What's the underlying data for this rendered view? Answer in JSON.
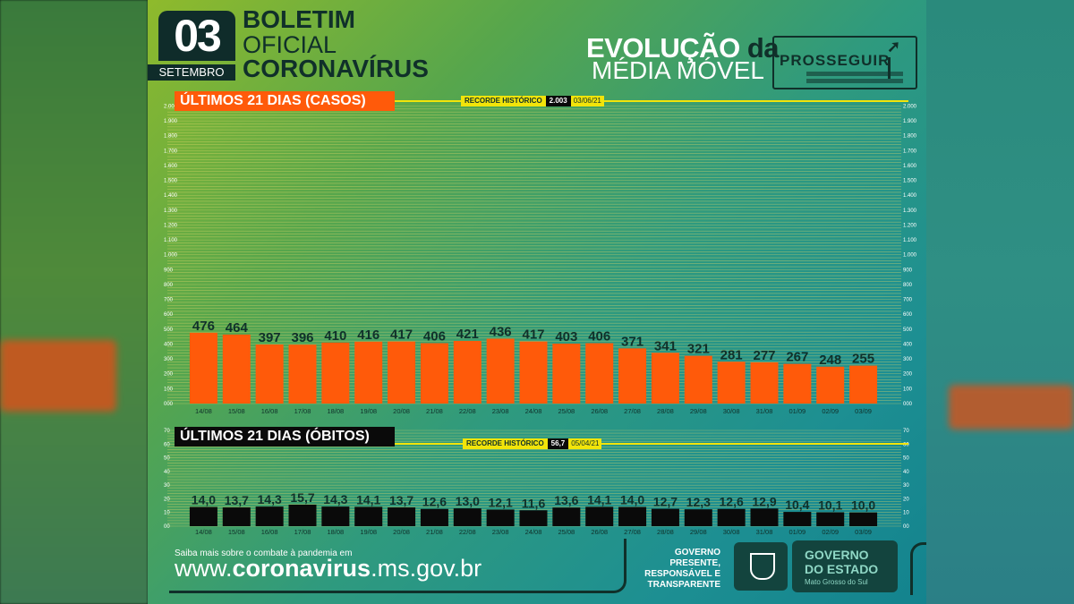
{
  "header": {
    "day": "03",
    "month": "SETEMBRO",
    "title_1": "BOLETIM",
    "title_2": "OFICIAL",
    "title_3": "CORONAVÍRUS",
    "evolution": "EVOLUÇÃO",
    "evolution_da": "da",
    "moving_average": "MÉDIA MÓVEL",
    "logo_text": "PROSSEGUIR"
  },
  "colors": {
    "cases_bar": "#ff5a0a",
    "deaths_bar": "#0a0a0a",
    "record_line": "#f2e40a",
    "grid_line": "#e6d96a"
  },
  "chart_data": [
    {
      "type": "bar",
      "title": "ÚLTIMOS 21 DIAS (CASOS)",
      "record_label": "RECORDE HISTÓRICO",
      "record_value": "2.003",
      "record_date": "03/06/21",
      "categories": [
        "14/08",
        "15/08",
        "16/08",
        "17/08",
        "18/08",
        "19/08",
        "20/08",
        "21/08",
        "22/08",
        "23/08",
        "24/08",
        "25/08",
        "26/08",
        "27/08",
        "28/08",
        "29/08",
        "30/08",
        "31/08",
        "01/09",
        "02/09",
        "03/09"
      ],
      "values": [
        476,
        464,
        397,
        396,
        410,
        416,
        417,
        406,
        421,
        436,
        417,
        403,
        406,
        371,
        341,
        321,
        281,
        277,
        267,
        248,
        255
      ],
      "value_labels": [
        "476",
        "464",
        "397",
        "396",
        "410",
        "416",
        "417",
        "406",
        "421",
        "436",
        "417",
        "403",
        "406",
        "371",
        "341",
        "321",
        "281",
        "277",
        "267",
        "248",
        "255"
      ],
      "yticks": [
        0,
        100,
        200,
        300,
        400,
        500,
        600,
        700,
        800,
        900,
        1000,
        1100,
        1200,
        1300,
        1400,
        1500,
        1600,
        1700,
        1800,
        1900,
        2000
      ],
      "ytick_labels": [
        "000",
        "100",
        "200",
        "300",
        "400",
        "500",
        "600",
        "700",
        "800",
        "900",
        "1.000",
        "1.100",
        "1.200",
        "1.300",
        "1.400",
        "1.500",
        "1.600",
        "1.700",
        "1.800",
        "1.900",
        "2.000"
      ],
      "ylim": [
        0,
        2003
      ]
    },
    {
      "type": "bar",
      "title": "ÚLTIMOS 21 DIAS (ÓBITOS)",
      "record_label": "RECORDE HISTÓRICO",
      "record_value": "56,7",
      "record_date": "05/04/21",
      "categories": [
        "14/08",
        "15/08",
        "16/08",
        "17/08",
        "18/08",
        "19/08",
        "20/08",
        "21/08",
        "22/08",
        "23/08",
        "24/08",
        "25/08",
        "26/08",
        "27/08",
        "28/08",
        "29/08",
        "30/08",
        "31/08",
        "01/09",
        "02/09",
        "03/09"
      ],
      "values": [
        14.0,
        13.7,
        14.3,
        15.7,
        14.3,
        14.1,
        13.7,
        12.6,
        13.0,
        12.1,
        11.6,
        13.6,
        14.1,
        14.0,
        12.7,
        12.3,
        12.6,
        12.9,
        10.4,
        10.1,
        10.0
      ],
      "value_labels": [
        "14,0",
        "13,7",
        "14,3",
        "15,7",
        "14,3",
        "14,1",
        "13,7",
        "12,6",
        "13,0",
        "12,1",
        "11,6",
        "13,6",
        "14,1",
        "14,0",
        "12,7",
        "12,3",
        "12,6",
        "12,9",
        "10,4",
        "10,1",
        "10,0"
      ],
      "yticks": [
        0,
        10,
        20,
        30,
        40,
        50,
        60,
        70
      ],
      "ytick_labels": [
        "00",
        "10",
        "20",
        "30",
        "40",
        "50",
        "60",
        "70"
      ],
      "ylim": [
        0,
        70
      ]
    }
  ],
  "footer": {
    "info": "Saiba mais sobre o combate à pandemia em",
    "url_prefix": "www.",
    "url_main": "coronavirus",
    "url_suffix": ".ms.gov.br",
    "slogan": [
      "GOVERNO",
      "PRESENTE,",
      "RESPONSÁVEL E",
      "TRANSPARENTE"
    ],
    "gov_line_1": "GOVERNO",
    "gov_line_2": "DO ESTADO",
    "gov_sub": "Mato Grosso do Sul"
  }
}
